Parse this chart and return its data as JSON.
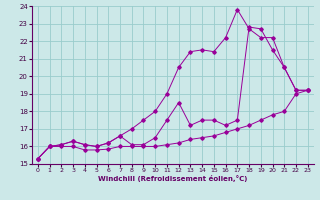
{
  "xlabel": "Windchill (Refroidissement éolien,°C)",
  "background_color": "#cce8e8",
  "grid_color": "#99cccc",
  "line_color": "#990099",
  "xlim": [
    -0.5,
    23.5
  ],
  "ylim": [
    15,
    24
  ],
  "xticks": [
    0,
    1,
    2,
    3,
    4,
    5,
    6,
    7,
    8,
    9,
    10,
    11,
    12,
    13,
    14,
    15,
    16,
    17,
    18,
    19,
    20,
    21,
    22,
    23
  ],
  "yticks": [
    15,
    16,
    17,
    18,
    19,
    20,
    21,
    22,
    23,
    24
  ],
  "line1_x": [
    0,
    1,
    2,
    3,
    4,
    5,
    6,
    7,
    8,
    9,
    10,
    11,
    12,
    13,
    14,
    15,
    16,
    17,
    18,
    19,
    20,
    21,
    22,
    23
  ],
  "line1_y": [
    15.3,
    16.0,
    16.0,
    16.0,
    15.8,
    15.8,
    15.85,
    16.0,
    16.0,
    16.0,
    16.0,
    16.1,
    16.2,
    16.4,
    16.5,
    16.6,
    16.8,
    17.0,
    17.2,
    17.5,
    17.8,
    18.0,
    19.0,
    19.2
  ],
  "line2_x": [
    0,
    1,
    2,
    3,
    4,
    5,
    6,
    7,
    8,
    9,
    10,
    11,
    12,
    13,
    14,
    15,
    16,
    17,
    18,
    19,
    20,
    21,
    22,
    23
  ],
  "line2_y": [
    15.3,
    16.0,
    16.1,
    16.3,
    16.1,
    16.0,
    16.2,
    16.6,
    17.0,
    17.5,
    18.0,
    19.0,
    20.5,
    21.4,
    21.5,
    21.4,
    22.2,
    23.8,
    22.7,
    22.2,
    22.2,
    20.5,
    19.2,
    19.2
  ],
  "line3_x": [
    0,
    1,
    2,
    3,
    4,
    5,
    6,
    7,
    8,
    9,
    10,
    11,
    12,
    13,
    14,
    15,
    16,
    17,
    18,
    19,
    20,
    21,
    22,
    23
  ],
  "line3_y": [
    15.3,
    16.0,
    16.1,
    16.3,
    16.1,
    16.0,
    16.2,
    16.6,
    16.1,
    16.1,
    16.5,
    17.5,
    18.5,
    17.2,
    17.5,
    17.5,
    17.2,
    17.5,
    22.8,
    22.7,
    21.5,
    20.5,
    19.2,
    19.2
  ]
}
